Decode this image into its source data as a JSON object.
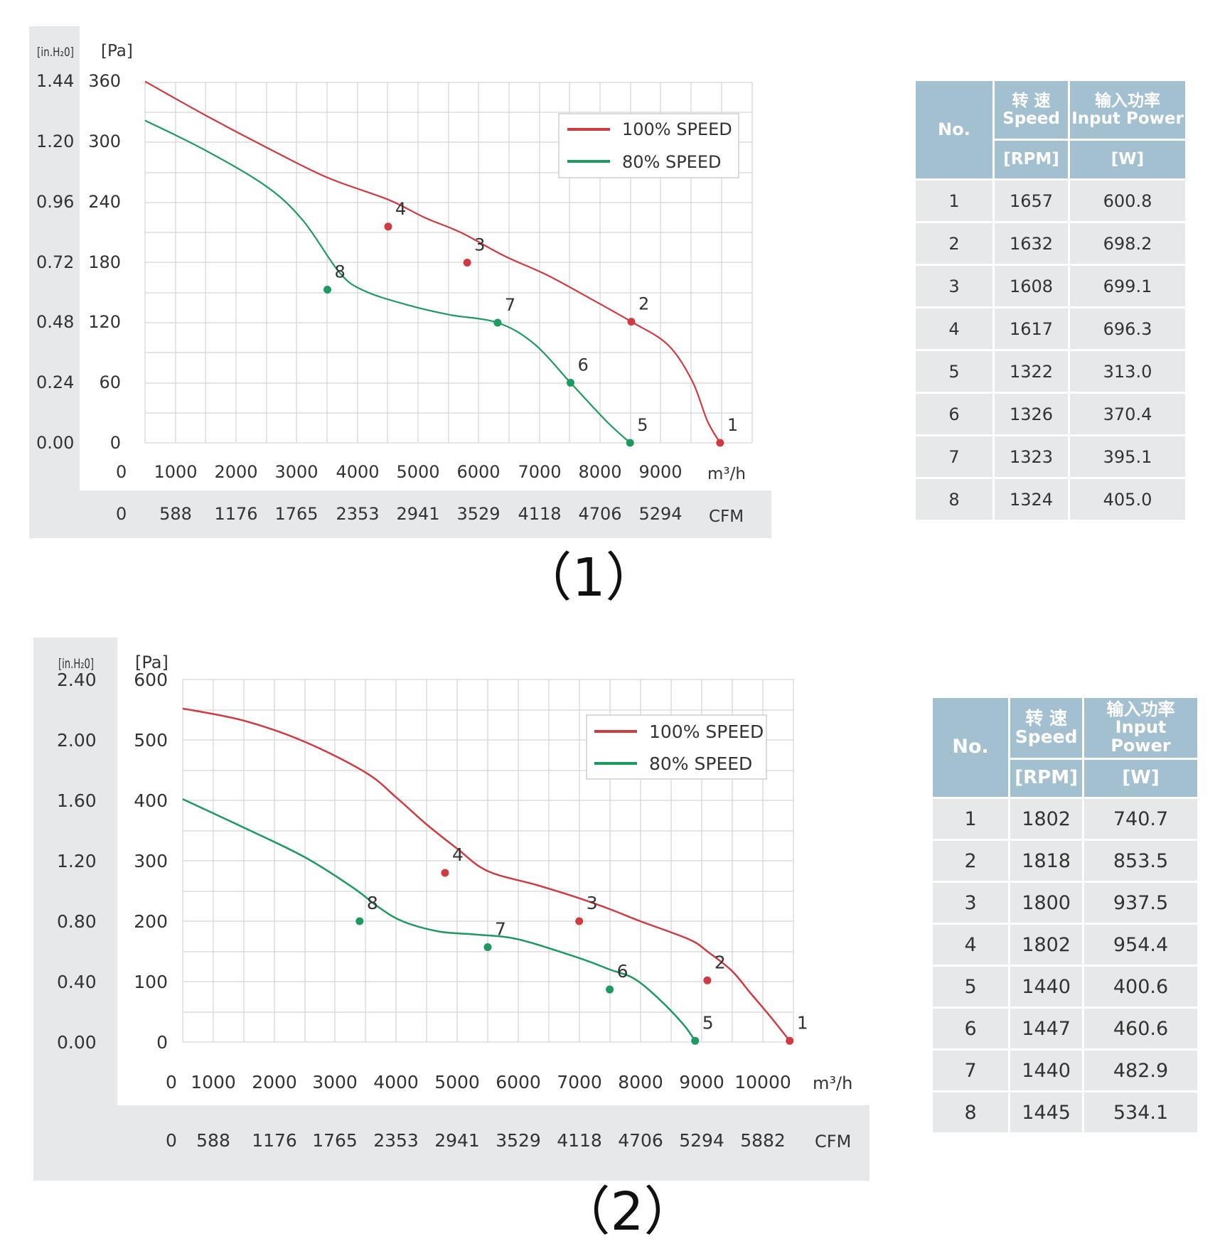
{
  "panels": [
    {
      "label": "（1）",
      "units": {
        "left": "[in.H₂0]",
        "right": "[Pa]",
        "x": "m³/h",
        "x2": "CFM"
      },
      "legend": {
        "s1": "100% SPEED",
        "s2": "80% SPEED"
      },
      "table": {
        "head_no": "No.",
        "head_speed_cn": "转 速",
        "head_speed_en": "Speed",
        "head_power_cn": "输入功率",
        "head_power_en": "Input Power",
        "unit_speed": "[RPM]",
        "unit_power": "[W]",
        "rows": [
          [
            "1",
            "1657",
            "600.8"
          ],
          [
            "2",
            "1632",
            "698.2"
          ],
          [
            "3",
            "1608",
            "699.1"
          ],
          [
            "4",
            "1617",
            "696.3"
          ],
          [
            "5",
            "1322",
            "313.0"
          ],
          [
            "6",
            "1326",
            "370.4"
          ],
          [
            "7",
            "1323",
            "395.1"
          ],
          [
            "8",
            "1324",
            "405.0"
          ]
        ]
      }
    },
    {
      "label": "（2）",
      "units": {
        "left": "[in.H₂0]",
        "right": "[Pa]",
        "x": "m³/h",
        "x2": "CFM"
      },
      "legend": {
        "s1": "100% SPEED",
        "s2": "80% SPEED"
      },
      "table": {
        "head_no": "No.",
        "head_speed_cn": "转 速",
        "head_speed_en": "Speed",
        "head_power_cn": "输入功率",
        "head_power_en": "Input Power",
        "unit_speed": "[RPM]",
        "unit_power": "[W]",
        "rows": [
          [
            "1",
            "1802",
            "740.7"
          ],
          [
            "2",
            "1818",
            "853.5"
          ],
          [
            "3",
            "1800",
            "937.5"
          ],
          [
            "4",
            "1802",
            "954.4"
          ],
          [
            "5",
            "1440",
            "400.6"
          ],
          [
            "6",
            "1447",
            "460.6"
          ],
          [
            "7",
            "1440",
            "482.9"
          ],
          [
            "8",
            "1445",
            "534.1"
          ]
        ]
      }
    }
  ],
  "chart_data": [
    {
      "type": "line",
      "xlabel": "m³/h",
      "x2label": "CFM",
      "ylabel": "[Pa]",
      "y2label": "[in.H₂0]",
      "xlim": [
        0,
        10000
      ],
      "ylim": [
        0,
        360
      ],
      "x_ticks": [
        "0",
        "1000",
        "2000",
        "3000",
        "4000",
        "5000",
        "6000",
        "7000",
        "8000",
        "9000"
      ],
      "x2_ticks": [
        "0",
        "588",
        "1176",
        "1765",
        "2353",
        "2941",
        "3529",
        "4118",
        "4706",
        "5294"
      ],
      "y_ticks": [
        "0",
        "60",
        "120",
        "180",
        "240",
        "300",
        "360"
      ],
      "y2_ticks": [
        "0.00",
        "0.24",
        "0.48",
        "0.72",
        "0.96",
        "1.20",
        "1.44"
      ],
      "grid": true,
      "legend_position": "top-right",
      "colors": {
        "s1": "#d03a41",
        "s2": "#1d9a5f"
      },
      "series": [
        {
          "name": "100% SPEED",
          "color": "#d03a41",
          "curve": [
            [
              0,
              361
            ],
            [
              1000,
              327
            ],
            [
              2000,
              295
            ],
            [
              3000,
              265
            ],
            [
              4000,
              243
            ],
            [
              4600,
              225
            ],
            [
              5200,
              210
            ],
            [
              5900,
              187
            ],
            [
              6600,
              168
            ],
            [
              7300,
              145
            ],
            [
              8000,
              121
            ],
            [
              8600,
              98
            ],
            [
              9000,
              62
            ],
            [
              9250,
              22
            ],
            [
              9460,
              0
            ]
          ],
          "points": [
            {
              "label": "1",
              "x": 9460,
              "y": 0
            },
            {
              "label": "2",
              "x": 8000,
              "y": 121
            },
            {
              "label": "3",
              "x": 5300,
              "y": 180
            },
            {
              "label": "4",
              "x": 4000,
              "y": 216
            }
          ]
        },
        {
          "name": "80% SPEED",
          "color": "#1d9a5f",
          "curve": [
            [
              0,
              322
            ],
            [
              1000,
              292
            ],
            [
              2000,
              256
            ],
            [
              2600,
              222
            ],
            [
              3200,
              170
            ],
            [
              3600,
              152
            ],
            [
              4300,
              138
            ],
            [
              5000,
              128
            ],
            [
              5800,
              120
            ],
            [
              6400,
              99
            ],
            [
              7000,
              60
            ],
            [
              7600,
              21
            ],
            [
              7980,
              0
            ]
          ],
          "points": [
            {
              "label": "5",
              "x": 7980,
              "y": 0
            },
            {
              "label": "6",
              "x": 7000,
              "y": 60
            },
            {
              "label": "7",
              "x": 5800,
              "y": 120
            },
            {
              "label": "8",
              "x": 3000,
              "y": 153
            }
          ]
        }
      ]
    },
    {
      "type": "line",
      "xlabel": "m³/h",
      "x2label": "CFM",
      "ylabel": "[Pa]",
      "y2label": "[in.H₂0]",
      "xlim": [
        0,
        10000
      ],
      "ylim": [
        0,
        600
      ],
      "x_ticks": [
        "0",
        "1000",
        "2000",
        "3000",
        "4000",
        "5000",
        "6000",
        "7000",
        "8000",
        "9000",
        "10000"
      ],
      "x2_ticks": [
        "0",
        "588",
        "1176",
        "1765",
        "2353",
        "2941",
        "3529",
        "4118",
        "4706",
        "5294",
        "5882"
      ],
      "y_ticks": [
        "0",
        "100",
        "200",
        "300",
        "400",
        "500",
        "600"
      ],
      "y2_ticks": [
        "0.00",
        "0.40",
        "0.80",
        "1.20",
        "1.60",
        "2.00",
        "2.40"
      ],
      "grid": true,
      "legend_position": "top-right",
      "colors": {
        "s1": "#d03a41",
        "s2": "#1d9a5f"
      },
      "series": [
        {
          "name": "100% SPEED",
          "color": "#d03a41",
          "curve": [
            [
              0,
              552
            ],
            [
              1000,
              532
            ],
            [
              2000,
              497
            ],
            [
              3000,
              446
            ],
            [
              3500,
              405
            ],
            [
              4000,
              360
            ],
            [
              4500,
              320
            ],
            [
              5000,
              283
            ],
            [
              5800,
              260
            ],
            [
              6500,
              238
            ],
            [
              7000,
              220
            ],
            [
              7500,
              200
            ],
            [
              8300,
              170
            ],
            [
              8600,
              150
            ],
            [
              9000,
              118
            ],
            [
              9300,
              82
            ],
            [
              9650,
              40
            ],
            [
              9950,
              2
            ]
          ],
          "points": [
            {
              "label": "1",
              "x": 9950,
              "y": 2
            },
            {
              "label": "2",
              "x": 8600,
              "y": 102
            },
            {
              "label": "3",
              "x": 6500,
              "y": 200
            },
            {
              "label": "4",
              "x": 4300,
              "y": 280
            }
          ]
        },
        {
          "name": "80% SPEED",
          "color": "#1d9a5f",
          "curve": [
            [
              0,
              402
            ],
            [
              1000,
              355
            ],
            [
              2000,
              306
            ],
            [
              2800,
              255
            ],
            [
              3200,
              224
            ],
            [
              3600,
              200
            ],
            [
              4200,
              183
            ],
            [
              4800,
              178
            ],
            [
              5500,
              170
            ],
            [
              6500,
              139
            ],
            [
              7000,
              120
            ],
            [
              7400,
              105
            ],
            [
              7800,
              72
            ],
            [
              8200,
              30
            ],
            [
              8400,
              2
            ]
          ],
          "points": [
            {
              "label": "5",
              "x": 8400,
              "y": 2
            },
            {
              "label": "6",
              "x": 7000,
              "y": 87
            },
            {
              "label": "7",
              "x": 5000,
              "y": 157
            },
            {
              "label": "8",
              "x": 2900,
              "y": 200
            }
          ]
        }
      ]
    }
  ]
}
